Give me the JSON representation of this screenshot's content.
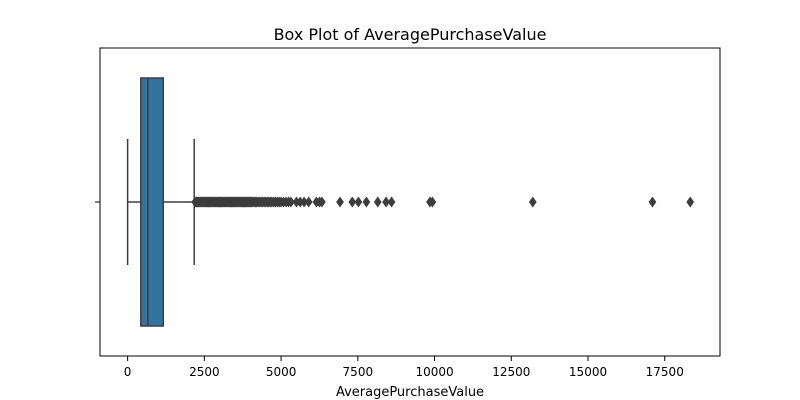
{
  "chart_data": {
    "type": "box",
    "title": "Box Plot of AveragePurchaseValue",
    "xlabel": "AveragePurchaseValue",
    "ylabel": "",
    "xlim": [
      -900,
      19300
    ],
    "xticks": [
      0,
      2500,
      5000,
      7500,
      10000,
      12500,
      15000,
      17500
    ],
    "xtick_labels": [
      "0",
      "2500",
      "5000",
      "7500",
      "10000",
      "12500",
      "15000",
      "17500"
    ],
    "grid": false,
    "box": {
      "whisker_low": 0,
      "q1": 430,
      "median": 660,
      "q3": 1160,
      "whisker_high": 2170,
      "color": "#3274a1",
      "edge_color": "#3d3d3d"
    },
    "outliers": [
      2200,
      2230,
      2260,
      2290,
      2320,
      2350,
      2380,
      2410,
      2440,
      2470,
      2500,
      2530,
      2560,
      2590,
      2620,
      2650,
      2680,
      2710,
      2740,
      2770,
      2800,
      2830,
      2860,
      2890,
      2920,
      2950,
      2980,
      3010,
      3040,
      3070,
      3100,
      3130,
      3160,
      3190,
      3220,
      3250,
      3280,
      3310,
      3340,
      3370,
      3400,
      3430,
      3460,
      3490,
      3520,
      3550,
      3580,
      3610,
      3640,
      3670,
      3700,
      3730,
      3760,
      3790,
      3820,
      3850,
      3880,
      3910,
      3940,
      3970,
      4000,
      4040,
      4080,
      4120,
      4160,
      4200,
      4250,
      4300,
      4350,
      4400,
      4450,
      4500,
      4550,
      4600,
      4650,
      4700,
      4760,
      4820,
      4880,
      4940,
      5000,
      5080,
      5160,
      5240,
      5320,
      5500,
      5620,
      5750,
      5900,
      6150,
      6250,
      6330,
      6920,
      7320,
      7520,
      7780,
      8150,
      8420,
      8600,
      9850,
      9930,
      13200,
      17100,
      18330
    ]
  }
}
